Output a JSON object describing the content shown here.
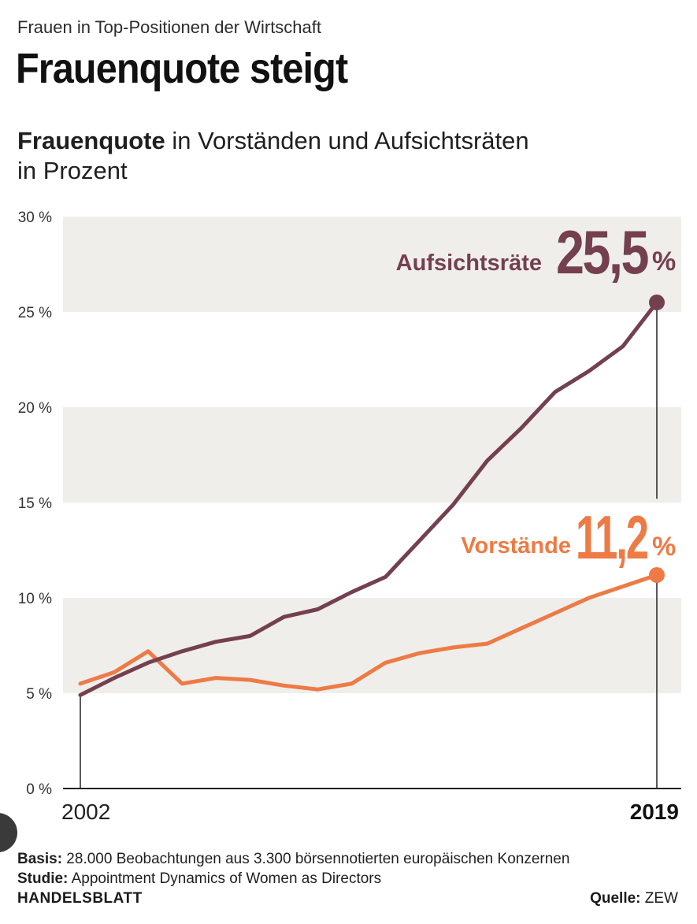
{
  "header": {
    "kicker": "Frauen in Top-Positionen der Wirtschaft",
    "title": "Frauenquote steigt",
    "subtitle_bold": "Frauenquote",
    "subtitle_rest": " in Vorständen und Aufsichtsräten",
    "subtitle_line2": "in Prozent"
  },
  "colors": {
    "aufsichtsraete": "#74404f",
    "vorstaende": "#ee7a45",
    "band": "#efeeeb",
    "axis": "#222222"
  },
  "chart_data": {
    "type": "line",
    "x": [
      2002,
      2003,
      2004,
      2005,
      2006,
      2007,
      2008,
      2009,
      2010,
      2011,
      2012,
      2013,
      2014,
      2015,
      2016,
      2017,
      2018,
      2019
    ],
    "x_tick_labels": [
      "2002",
      "2019"
    ],
    "ylim": [
      0,
      30
    ],
    "y_ticks": [
      0,
      5,
      10,
      15,
      20,
      25,
      30
    ],
    "y_tick_labels": [
      "0 %",
      "5 %",
      "10 %",
      "15 %",
      "20 %",
      "25 %",
      "30 %"
    ],
    "grid": "alternating horizontal bands",
    "legend": "direct labels at line ends",
    "series": [
      {
        "name": "Aufsichtsräte",
        "color": "#74404f",
        "values": [
          4.9,
          5.8,
          6.6,
          7.2,
          7.7,
          8.0,
          9.0,
          9.4,
          10.3,
          11.1,
          13.0,
          14.9,
          17.2,
          18.9,
          20.8,
          21.9,
          23.2,
          25.5
        ],
        "end_label_value": "25,5",
        "end_label_unit": "%"
      },
      {
        "name": "Vorstände",
        "color": "#ee7a45",
        "values": [
          5.5,
          6.1,
          7.2,
          5.5,
          5.8,
          5.7,
          5.4,
          5.2,
          5.5,
          6.6,
          7.1,
          7.4,
          7.6,
          8.4,
          9.2,
          10.0,
          10.6,
          11.2
        ],
        "end_label_value": "11,2",
        "end_label_unit": "%"
      }
    ]
  },
  "footer": {
    "basis_label": "Basis:",
    "basis_text": " 28.000 Beobachtungen aus 3.300 börsennotierten europäischen Konzernen",
    "studie_label": "Studie:",
    "studie_text": " Appointment Dynamics of Women as Directors",
    "brand": "HANDELSBLATT",
    "source_label": "Quelle:",
    "source_text": " ZEW"
  }
}
